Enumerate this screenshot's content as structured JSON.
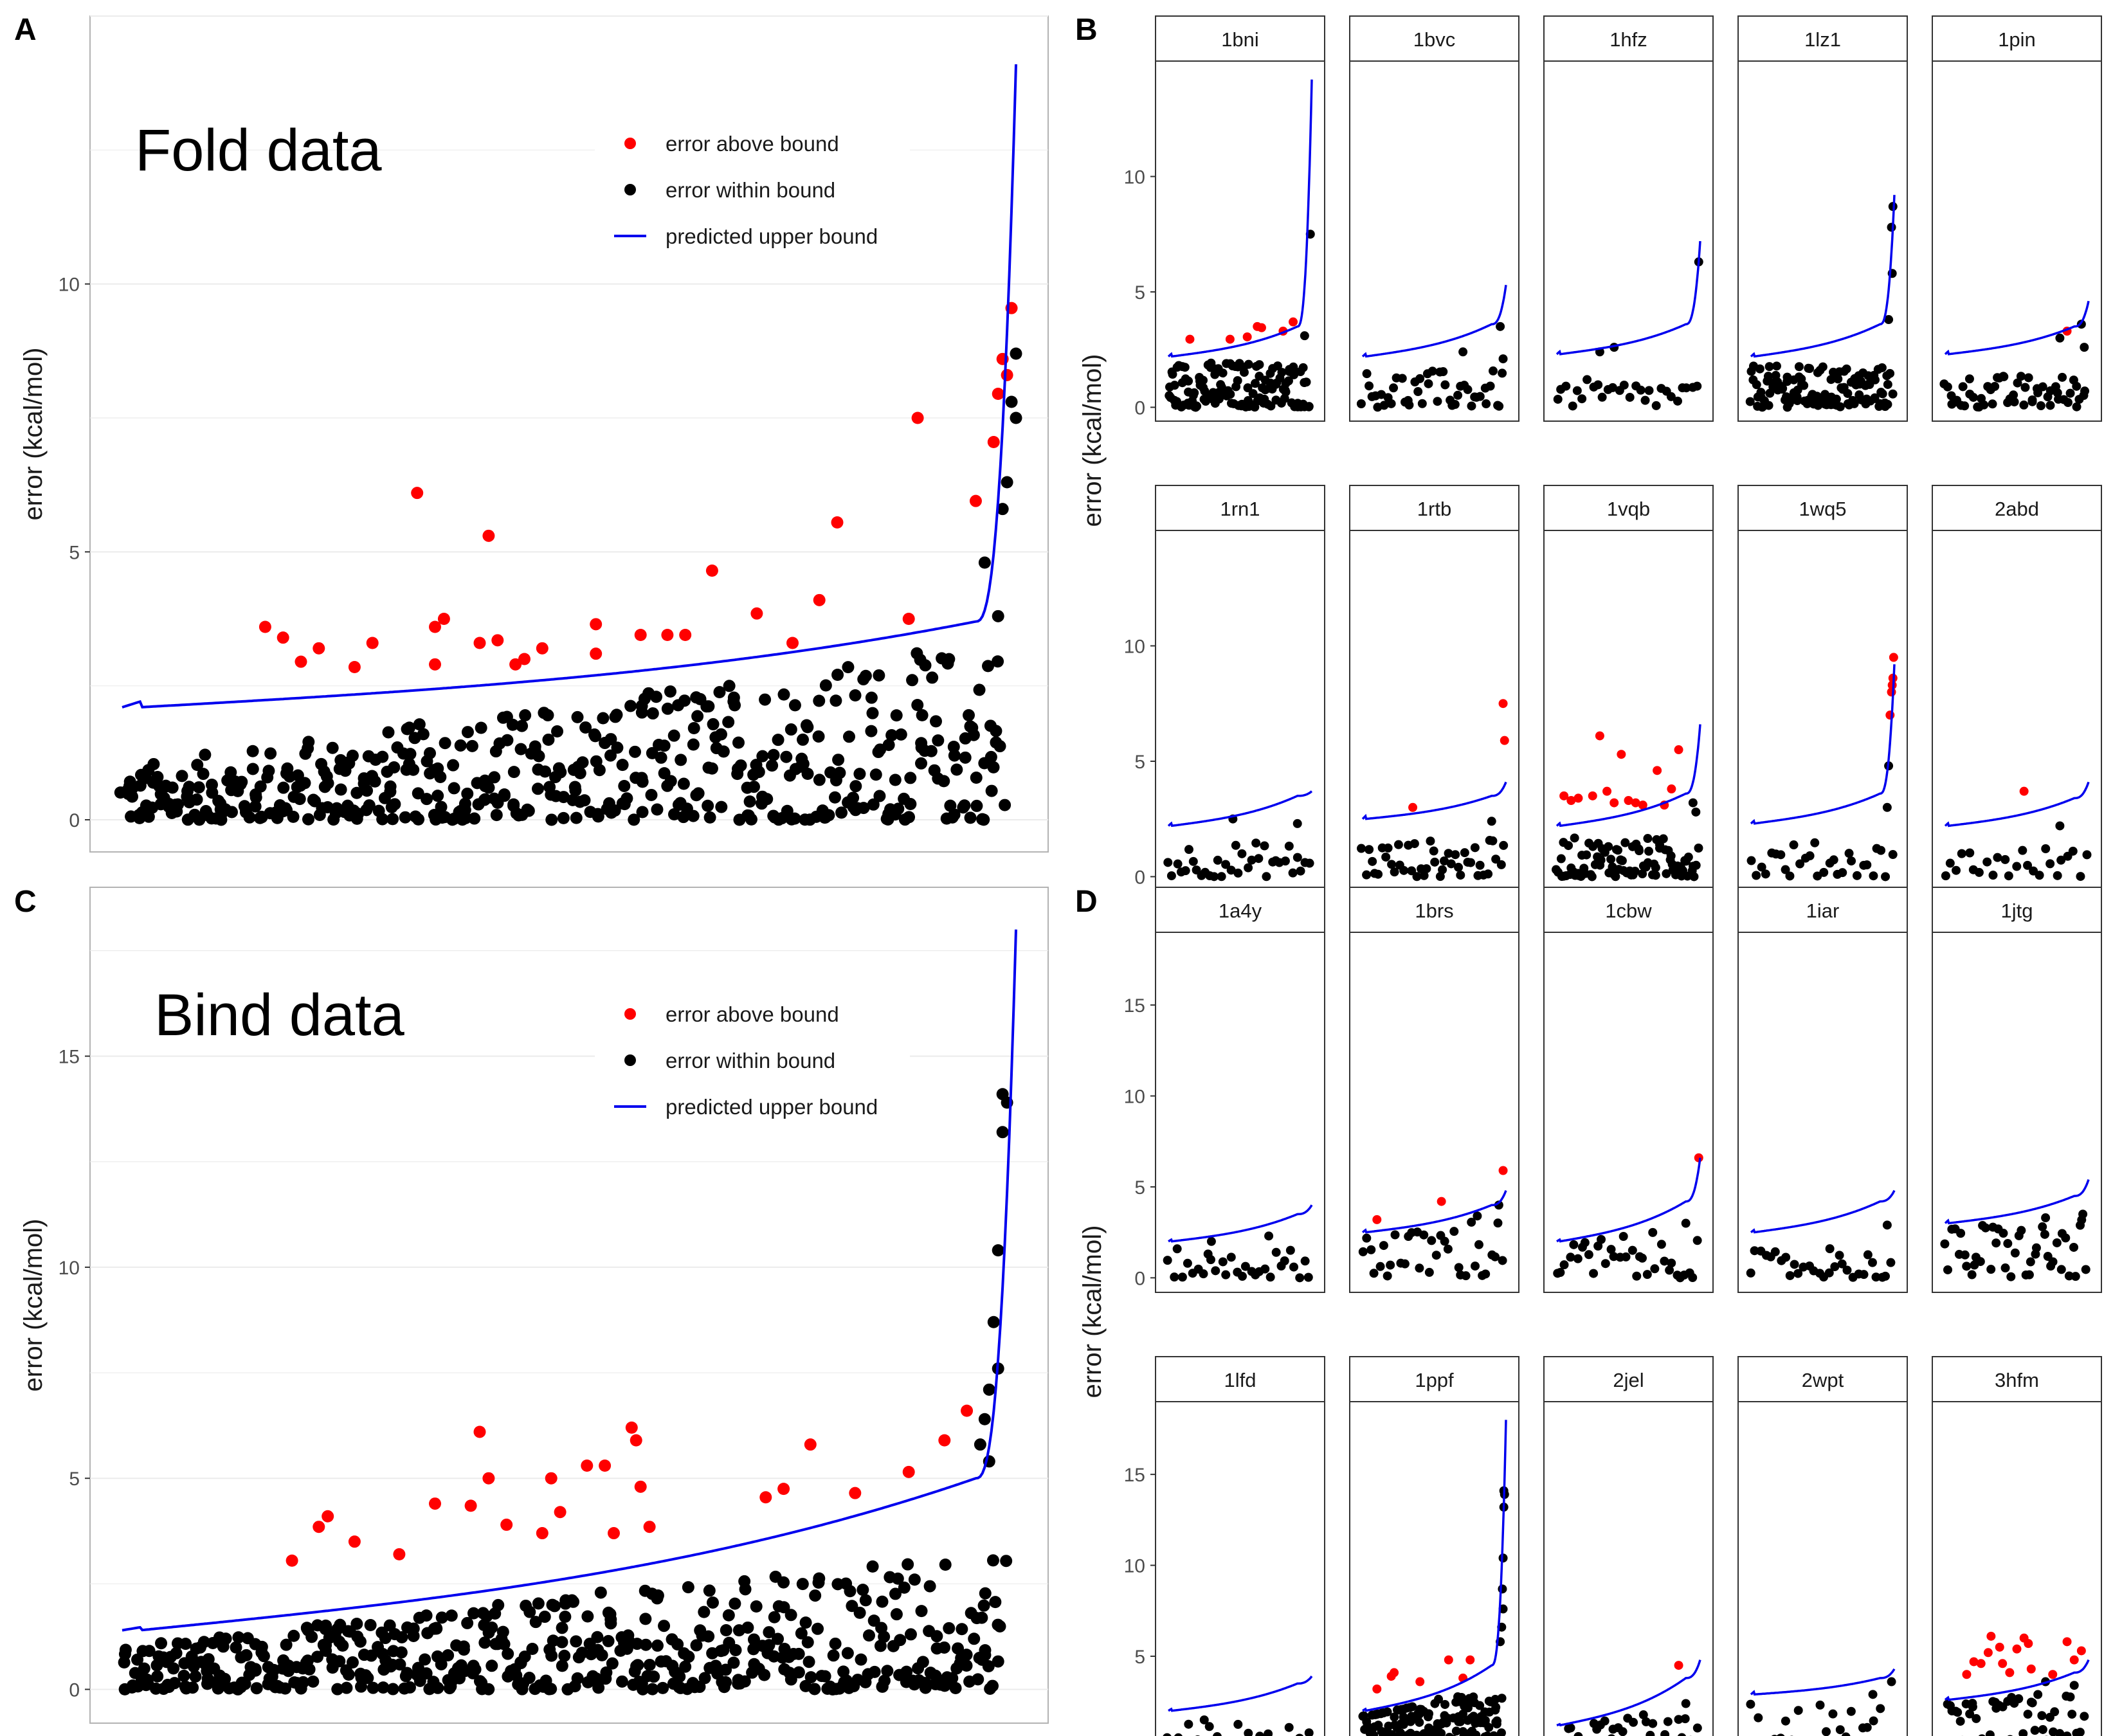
{
  "panel_labels": [
    "A",
    "B",
    "C",
    "D"
  ],
  "legend": {
    "above": "error above bound",
    "within": "error within bound",
    "bound": "predicted upper bound"
  },
  "colors": {
    "above": "#ff0000",
    "within": "#000000",
    "bound": "#0000ee",
    "grid": "#ebebeb",
    "strip_border": "#333333"
  },
  "chart_data": [
    {
      "panel": "A",
      "type": "scatter",
      "title": "Fold data",
      "xlabel": "",
      "ylabel": "error (kcal/mol)",
      "ylim": [
        -0.6,
        15.0
      ],
      "yticks": [
        0,
        5,
        10
      ],
      "grid": true,
      "legend_position": "top-right",
      "n_points": 500,
      "bound_curve": {
        "start": 2.1,
        "before_knee": 3.7,
        "end": 14.1
      },
      "above_points": [
        {
          "x": 0.16,
          "y": 3.6
        },
        {
          "x": 0.18,
          "y": 3.4
        },
        {
          "x": 0.2,
          "y": 2.95
        },
        {
          "x": 0.22,
          "y": 3.2
        },
        {
          "x": 0.26,
          "y": 2.85
        },
        {
          "x": 0.28,
          "y": 3.3
        },
        {
          "x": 0.33,
          "y": 6.1
        },
        {
          "x": 0.35,
          "y": 3.6
        },
        {
          "x": 0.36,
          "y": 3.75
        },
        {
          "x": 0.35,
          "y": 2.9
        },
        {
          "x": 0.4,
          "y": 3.3
        },
        {
          "x": 0.41,
          "y": 5.3
        },
        {
          "x": 0.42,
          "y": 3.35
        },
        {
          "x": 0.44,
          "y": 2.9
        },
        {
          "x": 0.45,
          "y": 3.0
        },
        {
          "x": 0.47,
          "y": 3.2
        },
        {
          "x": 0.53,
          "y": 3.1
        },
        {
          "x": 0.53,
          "y": 3.65
        },
        {
          "x": 0.58,
          "y": 3.45
        },
        {
          "x": 0.61,
          "y": 3.45
        },
        {
          "x": 0.63,
          "y": 3.45
        },
        {
          "x": 0.66,
          "y": 4.65
        },
        {
          "x": 0.71,
          "y": 3.85
        },
        {
          "x": 0.75,
          "y": 3.3
        },
        {
          "x": 0.78,
          "y": 4.1
        },
        {
          "x": 0.8,
          "y": 5.55
        },
        {
          "x": 0.88,
          "y": 3.75
        },
        {
          "x": 0.89,
          "y": 7.5
        },
        {
          "x": 0.955,
          "y": 5.95
        },
        {
          "x": 0.975,
          "y": 7.05
        },
        {
          "x": 0.98,
          "y": 7.95
        },
        {
          "x": 0.985,
          "y": 8.6
        },
        {
          "x": 0.99,
          "y": 8.3
        },
        {
          "x": 0.995,
          "y": 9.55
        }
      ],
      "within_top_points": [
        {
          "x": 0.965,
          "y": 4.8
        },
        {
          "x": 0.98,
          "y": 3.8
        },
        {
          "x": 0.985,
          "y": 5.8
        },
        {
          "x": 0.99,
          "y": 6.3
        },
        {
          "x": 0.995,
          "y": 7.8
        },
        {
          "x": 1.0,
          "y": 8.7
        },
        {
          "x": 1.0,
          "y": 7.5
        }
      ]
    },
    {
      "panel": "B",
      "type": "scatter",
      "ylabel": "error (kcal/mol)",
      "ylim": [
        -0.6,
        15.0
      ],
      "yticks": [
        0,
        5,
        10
      ],
      "facets": [
        {
          "name": "1bni",
          "n": 130,
          "bound": [
            2.2,
            3.5,
            14.2
          ],
          "spread": 2.0,
          "above": [
            {
              "x": 0.15,
              "y": 2.95
            },
            {
              "x": 0.43,
              "y": 2.95
            },
            {
              "x": 0.55,
              "y": 3.05
            },
            {
              "x": 0.62,
              "y": 3.5
            },
            {
              "x": 0.65,
              "y": 3.45
            },
            {
              "x": 0.8,
              "y": 3.3
            },
            {
              "x": 0.87,
              "y": 3.7
            }
          ],
          "top": [
            {
              "x": 0.99,
              "y": 7.5
            },
            {
              "x": 0.95,
              "y": 3.1
            }
          ]
        },
        {
          "name": "1bvc",
          "n": 45,
          "bound": [
            2.2,
            3.6,
            5.3
          ],
          "spread": 1.6,
          "above": [],
          "top": [
            {
              "x": 0.96,
              "y": 3.5
            },
            {
              "x": 0.98,
              "y": 2.1
            },
            {
              "x": 0.7,
              "y": 2.4
            }
          ]
        },
        {
          "name": "1hfz",
          "n": 28,
          "bound": [
            2.3,
            3.6,
            7.2
          ],
          "spread": 1.2,
          "above": [],
          "top": [
            {
              "x": 0.99,
              "y": 6.3
            },
            {
              "x": 0.3,
              "y": 2.4
            },
            {
              "x": 0.4,
              "y": 2.6
            }
          ]
        },
        {
          "name": "1lz1",
          "n": 120,
          "bound": [
            2.2,
            3.6,
            9.2
          ],
          "spread": 1.8,
          "above": [],
          "top": [
            {
              "x": 0.98,
              "y": 7.8
            },
            {
              "x": 0.985,
              "y": 5.8
            },
            {
              "x": 0.99,
              "y": 8.7
            },
            {
              "x": 0.96,
              "y": 3.8
            }
          ]
        },
        {
          "name": "1pin",
          "n": 55,
          "bound": [
            2.3,
            3.5,
            4.6
          ],
          "spread": 1.4,
          "above": [
            {
              "x": 0.85,
              "y": 3.3
            }
          ],
          "top": [
            {
              "x": 0.95,
              "y": 3.6
            },
            {
              "x": 0.8,
              "y": 3.0
            },
            {
              "x": 0.97,
              "y": 2.6
            }
          ]
        },
        {
          "name": "1rn1",
          "n": 35,
          "bound": [
            2.2,
            3.5,
            3.7
          ],
          "spread": 1.5,
          "above": [],
          "top": [
            {
              "x": 0.45,
              "y": 2.5
            },
            {
              "x": 0.9,
              "y": 2.3
            }
          ]
        },
        {
          "name": "1rtb",
          "n": 45,
          "bound": [
            2.5,
            3.5,
            4.1
          ],
          "spread": 1.6,
          "above": [
            {
              "x": 0.35,
              "y": 3.0
            },
            {
              "x": 0.98,
              "y": 7.5
            },
            {
              "x": 0.99,
              "y": 5.9
            }
          ],
          "top": [
            {
              "x": 0.9,
              "y": 2.4
            }
          ]
        },
        {
          "name": "1vqb",
          "n": 90,
          "bound": [
            2.2,
            3.6,
            6.6
          ],
          "spread": 1.7,
          "above": [
            {
              "x": 0.05,
              "y": 3.5
            },
            {
              "x": 0.1,
              "y": 3.3
            },
            {
              "x": 0.15,
              "y": 3.4
            },
            {
              "x": 0.25,
              "y": 3.5
            },
            {
              "x": 0.3,
              "y": 6.1
            },
            {
              "x": 0.35,
              "y": 3.7
            },
            {
              "x": 0.4,
              "y": 3.2
            },
            {
              "x": 0.45,
              "y": 5.3
            },
            {
              "x": 0.5,
              "y": 3.3
            },
            {
              "x": 0.55,
              "y": 3.2
            },
            {
              "x": 0.6,
              "y": 3.1
            },
            {
              "x": 0.7,
              "y": 4.6
            },
            {
              "x": 0.8,
              "y": 3.8
            },
            {
              "x": 0.85,
              "y": 5.5
            },
            {
              "x": 0.75,
              "y": 3.1
            }
          ],
          "top": [
            {
              "x": 0.95,
              "y": 3.2
            },
            {
              "x": 0.97,
              "y": 2.8
            }
          ]
        },
        {
          "name": "1wq5",
          "n": 30,
          "bound": [
            2.3,
            3.6,
            9.2
          ],
          "spread": 1.5,
          "above": [
            {
              "x": 0.97,
              "y": 7.0
            },
            {
              "x": 0.98,
              "y": 8.0
            },
            {
              "x": 0.985,
              "y": 8.3
            },
            {
              "x": 0.99,
              "y": 8.6
            },
            {
              "x": 0.995,
              "y": 9.5
            }
          ],
          "top": [
            {
              "x": 0.96,
              "y": 4.8
            },
            {
              "x": 0.95,
              "y": 3.0
            }
          ]
        },
        {
          "name": "2abd",
          "n": 25,
          "bound": [
            2.2,
            3.4,
            4.1
          ],
          "spread": 1.3,
          "above": [
            {
              "x": 0.55,
              "y": 3.7
            }
          ],
          "top": [
            {
              "x": 0.8,
              "y": 2.2
            }
          ]
        }
      ]
    },
    {
      "panel": "C",
      "type": "scatter",
      "title": "Bind data",
      "xlabel": "",
      "ylabel": "error (kcal/mol)",
      "ylim": [
        -0.8,
        19.0
      ],
      "yticks": [
        0,
        5,
        10,
        15
      ],
      "grid": true,
      "legend_position": "top-right",
      "n_points": 520,
      "bound_curve": {
        "start": 1.4,
        "before_knee": 5.0,
        "end": 18.0
      },
      "above_points": [
        {
          "x": 0.19,
          "y": 3.05
        },
        {
          "x": 0.22,
          "y": 3.85
        },
        {
          "x": 0.23,
          "y": 4.1
        },
        {
          "x": 0.26,
          "y": 3.5
        },
        {
          "x": 0.31,
          "y": 3.2
        },
        {
          "x": 0.35,
          "y": 4.4
        },
        {
          "x": 0.39,
          "y": 4.35
        },
        {
          "x": 0.4,
          "y": 6.1
        },
        {
          "x": 0.41,
          "y": 5.0
        },
        {
          "x": 0.43,
          "y": 3.9
        },
        {
          "x": 0.47,
          "y": 3.7
        },
        {
          "x": 0.48,
          "y": 5.0
        },
        {
          "x": 0.49,
          "y": 4.2
        },
        {
          "x": 0.52,
          "y": 5.3
        },
        {
          "x": 0.54,
          "y": 5.3
        },
        {
          "x": 0.55,
          "y": 3.7
        },
        {
          "x": 0.57,
          "y": 6.2
        },
        {
          "x": 0.575,
          "y": 5.9
        },
        {
          "x": 0.58,
          "y": 4.8
        },
        {
          "x": 0.59,
          "y": 3.85
        },
        {
          "x": 0.72,
          "y": 4.55
        },
        {
          "x": 0.74,
          "y": 4.75
        },
        {
          "x": 0.77,
          "y": 5.8
        },
        {
          "x": 0.82,
          "y": 4.65
        },
        {
          "x": 0.88,
          "y": 5.15
        },
        {
          "x": 0.92,
          "y": 5.9
        },
        {
          "x": 0.945,
          "y": 6.6
        }
      ],
      "within_top_points": [
        {
          "x": 0.985,
          "y": 14.1
        },
        {
          "x": 0.99,
          "y": 13.9
        },
        {
          "x": 0.985,
          "y": 13.2
        },
        {
          "x": 0.98,
          "y": 10.4
        },
        {
          "x": 0.975,
          "y": 8.7
        },
        {
          "x": 0.98,
          "y": 7.6
        },
        {
          "x": 0.97,
          "y": 7.1
        },
        {
          "x": 0.965,
          "y": 6.4
        },
        {
          "x": 0.96,
          "y": 5.8
        },
        {
          "x": 0.97,
          "y": 5.4
        }
      ]
    },
    {
      "panel": "D",
      "type": "scatter",
      "ylabel": "error (kcal/mol)",
      "ylim": [
        -0.8,
        19.0
      ],
      "yticks": [
        0,
        5,
        10,
        15
      ],
      "facets": [
        {
          "name": "1a4y",
          "n": 30,
          "bound": [
            2.0,
            3.5,
            4.0
          ],
          "spread": 1.6,
          "above": [],
          "top": [
            {
              "x": 0.3,
              "y": 2.0
            },
            {
              "x": 0.7,
              "y": 2.3
            }
          ]
        },
        {
          "name": "1brs",
          "n": 35,
          "bound": [
            2.5,
            4.0,
            4.8
          ],
          "spread": 3.5,
          "above": [
            {
              "x": 0.1,
              "y": 3.2
            },
            {
              "x": 0.55,
              "y": 4.2
            },
            {
              "x": 0.98,
              "y": 5.9
            }
          ],
          "top": [
            {
              "x": 0.95,
              "y": 4.0
            },
            {
              "x": 0.8,
              "y": 3.4
            }
          ]
        },
        {
          "name": "1cbw",
          "n": 35,
          "bound": [
            2.0,
            4.2,
            6.6
          ],
          "spread": 2.5,
          "above": [
            {
              "x": 0.99,
              "y": 6.6
            }
          ],
          "top": [
            {
              "x": 0.9,
              "y": 3.0
            }
          ]
        },
        {
          "name": "1iar",
          "n": 30,
          "bound": [
            2.5,
            4.2,
            4.8
          ],
          "spread": 1.5,
          "above": [],
          "top": [
            {
              "x": 0.95,
              "y": 2.9
            },
            {
              "x": 0.55,
              "y": 1.6
            }
          ]
        },
        {
          "name": "1jtg",
          "n": 45,
          "bound": [
            3.0,
            4.5,
            5.4
          ],
          "spread": 3.2,
          "above": [],
          "top": [
            {
              "x": 0.96,
              "y": 3.5
            },
            {
              "x": 0.7,
              "y": 3.3
            }
          ]
        },
        {
          "name": "1lfd",
          "n": 15,
          "bound": [
            2.0,
            3.5,
            3.9
          ],
          "spread": 1.3,
          "above": [],
          "top": [
            {
              "x": 0.25,
              "y": 1.5
            }
          ]
        },
        {
          "name": "1ppf",
          "n": 200,
          "bound": [
            2.0,
            4.5,
            18.0
          ],
          "spread": 2.8,
          "above": [
            {
              "x": 0.1,
              "y": 3.2
            },
            {
              "x": 0.2,
              "y": 3.9
            },
            {
              "x": 0.22,
              "y": 4.1
            },
            {
              "x": 0.4,
              "y": 3.6
            },
            {
              "x": 0.6,
              "y": 4.8
            },
            {
              "x": 0.7,
              "y": 3.8
            },
            {
              "x": 0.75,
              "y": 4.8
            }
          ],
          "top": [
            {
              "x": 0.985,
              "y": 14.1
            },
            {
              "x": 0.99,
              "y": 13.9
            },
            {
              "x": 0.985,
              "y": 13.2
            },
            {
              "x": 0.98,
              "y": 10.4
            },
            {
              "x": 0.975,
              "y": 8.7
            },
            {
              "x": 0.98,
              "y": 7.6
            },
            {
              "x": 0.97,
              "y": 6.6
            },
            {
              "x": 0.96,
              "y": 5.8
            }
          ]
        },
        {
          "name": "2jel",
          "n": 40,
          "bound": [
            1.2,
            3.8,
            4.8
          ],
          "spread": 1.8,
          "above": [
            {
              "x": 0.85,
              "y": 4.5
            }
          ],
          "top": [
            {
              "x": 0.9,
              "y": 2.4
            }
          ]
        },
        {
          "name": "2wpt",
          "n": 25,
          "bound": [
            2.9,
            3.8,
            4.3
          ],
          "spread": 2.5,
          "above": [],
          "top": [
            {
              "x": 0.98,
              "y": 3.6
            },
            {
              "x": 0.85,
              "y": 2.9
            }
          ]
        },
        {
          "name": "3hfm",
          "n": 55,
          "bound": [
            2.6,
            4.1,
            4.8
          ],
          "spread": 3.0,
          "above": [
            {
              "x": 0.15,
              "y": 4.0
            },
            {
              "x": 0.2,
              "y": 4.7
            },
            {
              "x": 0.25,
              "y": 4.6
            },
            {
              "x": 0.3,
              "y": 5.2
            },
            {
              "x": 0.32,
              "y": 6.1
            },
            {
              "x": 0.38,
              "y": 5.5
            },
            {
              "x": 0.4,
              "y": 4.6
            },
            {
              "x": 0.45,
              "y": 4.1
            },
            {
              "x": 0.5,
              "y": 5.4
            },
            {
              "x": 0.55,
              "y": 6.0
            },
            {
              "x": 0.58,
              "y": 5.7
            },
            {
              "x": 0.6,
              "y": 4.3
            },
            {
              "x": 0.75,
              "y": 4.0
            },
            {
              "x": 0.85,
              "y": 5.8
            },
            {
              "x": 0.9,
              "y": 4.8
            },
            {
              "x": 0.95,
              "y": 5.3
            }
          ],
          "top": [
            {
              "x": 0.7,
              "y": 3.6
            },
            {
              "x": 0.9,
              "y": 3.4
            }
          ]
        }
      ]
    }
  ]
}
